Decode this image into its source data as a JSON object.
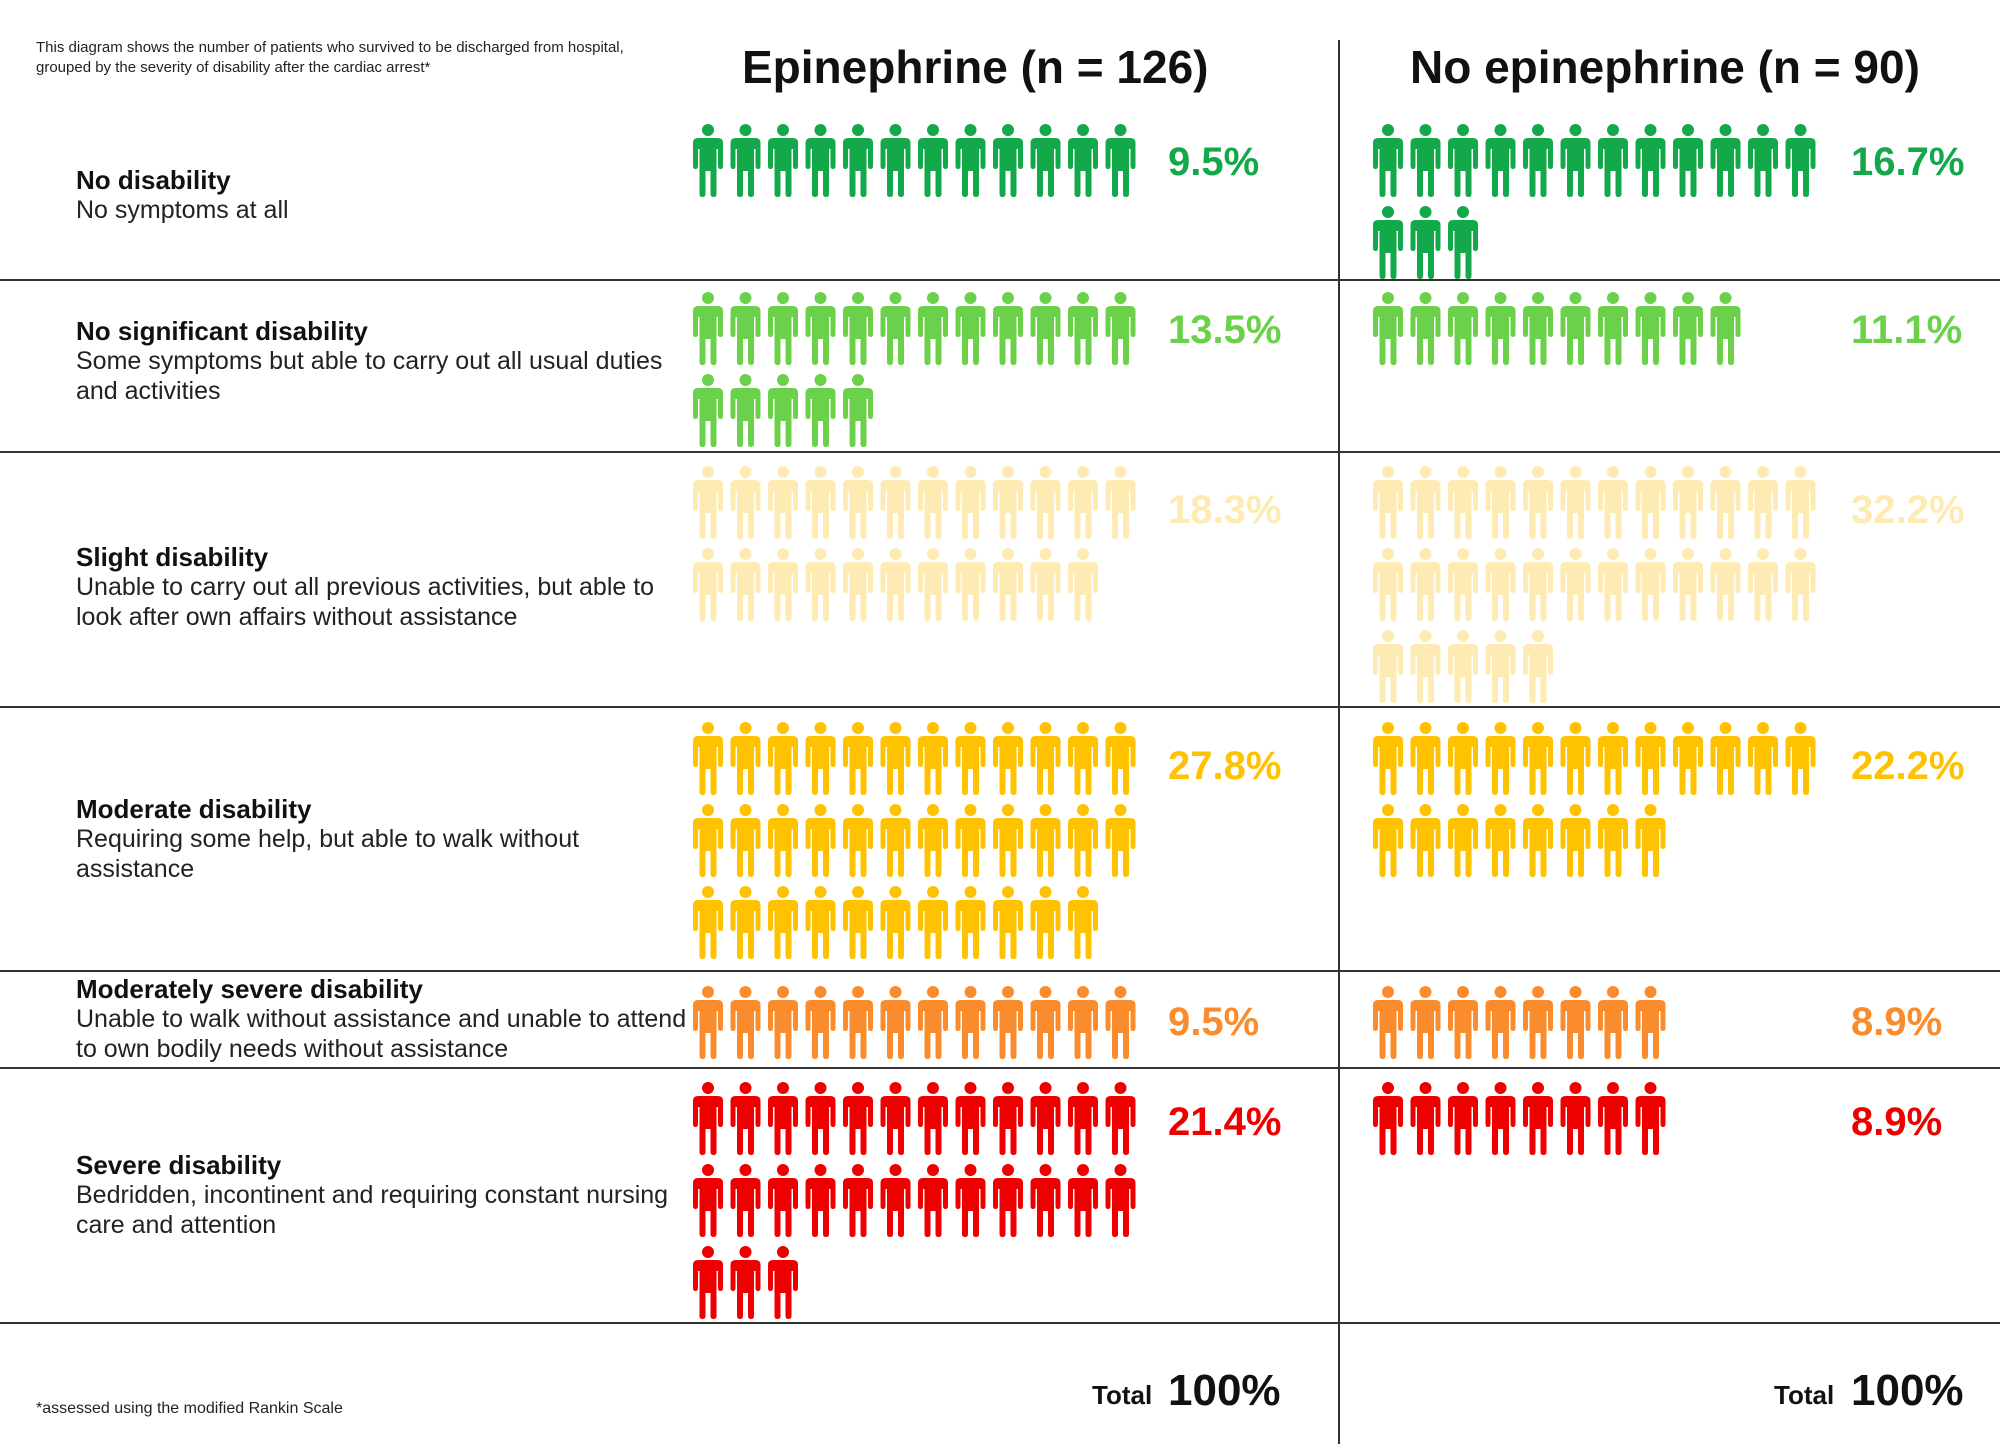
{
  "intro_text": "This diagram shows the number of patients who survived to be discharged from hospital, grouped by the severity of disability after the cardiac arrest*",
  "footnote": "*assessed using the modified Rankin Scale",
  "total_label": "Total",
  "colors": {
    "no_disability": "#13a84a",
    "no_significant": "#6cd14a",
    "slight": "#fdebb3",
    "moderate": "#ffc200",
    "moderately_severe": "#fb8c2d",
    "severe": "#ee0000"
  },
  "icon": "person-icon",
  "chart_data": {
    "type": "pictograph",
    "unit": "1 icon = 1 patient",
    "groups": [
      {
        "title": "Epinephrine (n = 126)",
        "total": "100%"
      },
      {
        "title": "No epinephrine (n = 90)",
        "total": "100%"
      }
    ],
    "categories": [
      {
        "name": "No disability",
        "description": "No symptoms at all",
        "color_key": "no_disability"
      },
      {
        "name": "No significant disability",
        "description": "Some symptoms but able to carry out all usual duties and activities",
        "color_key": "no_significant"
      },
      {
        "name": "Slight disability",
        "description": "Unable to carry out all previous activities, but able to look after own affairs without assistance",
        "color_key": "slight"
      },
      {
        "name": "Moderate disability",
        "description": "Requiring some help, but able to walk without assistance",
        "color_key": "moderate"
      },
      {
        "name": "Moderately severe disability",
        "description": "Unable to walk without assistance and unable to attend to own bodily needs without assistance",
        "color_key": "moderately_severe"
      },
      {
        "name": "Severe disability",
        "description": "Bedridden, incontinent and requiring constant nursing care and attention",
        "color_key": "severe"
      }
    ],
    "series": [
      {
        "name": "Epinephrine (n = 126)",
        "counts": [
          12,
          17,
          23,
          35,
          12,
          27
        ],
        "percents": [
          "9.5%",
          "13.5%",
          "18.3%",
          "27.8%",
          "9.5%",
          "21.4%"
        ]
      },
      {
        "name": "No epinephrine (n = 90)",
        "counts": [
          15,
          10,
          29,
          20,
          8,
          8
        ],
        "percents": [
          "16.7%",
          "11.1%",
          "32.2%",
          "22.2%",
          "8.9%",
          "8.9%"
        ]
      }
    ]
  }
}
